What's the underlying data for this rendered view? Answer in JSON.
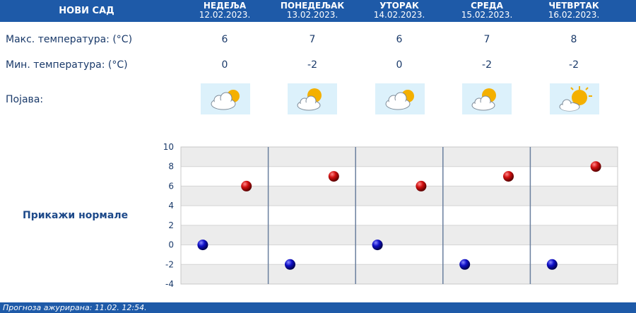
{
  "header": {
    "city": "НОВИ САД",
    "days": [
      {
        "name": "НЕДЕЉА",
        "date": "12.02.2023."
      },
      {
        "name": "ПОНЕДЕЉАК",
        "date": "13.02.2023."
      },
      {
        "name": "УТОРАК",
        "date": "14.02.2023."
      },
      {
        "name": "СРЕДА",
        "date": "15.02.2023."
      },
      {
        "name": "ЧЕТВРТАК",
        "date": "16.02.2023."
      }
    ]
  },
  "rows": {
    "max_label": "Макс. температура: (°C)",
    "min_label": "Мин. температура: (°C)",
    "phenomenon_label": "Појава:",
    "max_values": [
      "6",
      "7",
      "6",
      "7",
      "8"
    ],
    "min_values": [
      "0",
      "-2",
      "0",
      "-2",
      "-2"
    ],
    "icons": [
      "cloudy-sun-icon",
      "partly-cloudy-icon",
      "cloudy-sun-icon",
      "partly-cloudy-icon",
      "mostly-sunny-icon"
    ]
  },
  "normals_label": "Прикажи нормале",
  "footer": {
    "text": "Прогноза ажурирана:  11.02. 12:54."
  },
  "colors": {
    "header": "#1e5aa8",
    "max_point": "#cc0000",
    "min_point": "#0000b8",
    "text": "#1a3a6a"
  },
  "chart_data": {
    "type": "scatter",
    "categories": [
      "НЕДЕЉА",
      "ПОНЕДЕЉАК",
      "УТОРАК",
      "СРЕДА",
      "ЧЕТВРТАК"
    ],
    "series": [
      {
        "values": [
          6,
          7,
          6,
          7,
          8
        ],
        "color": "#cc0000"
      },
      {
        "values": [
          0,
          -2,
          0,
          -2,
          -2
        ],
        "color": "#0000b8"
      }
    ],
    "ylim": [
      -4,
      10
    ],
    "yticks": [
      10,
      8,
      6,
      4,
      2,
      0,
      -2,
      -4
    ],
    "title": "",
    "xlabel": "",
    "ylabel": "",
    "grid": true
  }
}
